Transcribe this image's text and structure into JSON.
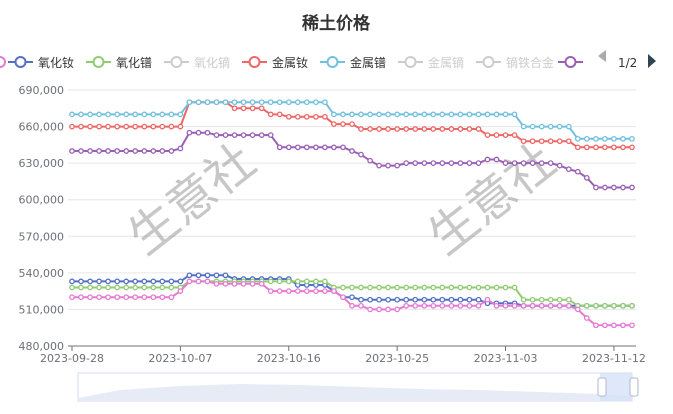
{
  "chart_data": {
    "type": "line",
    "title": "稀土价格",
    "xlabel": "",
    "ylabel": "",
    "ylim": [
      480000,
      690000
    ],
    "yticks": [
      "690,000",
      "660,000",
      "630,000",
      "600,000",
      "570,000",
      "540,000",
      "510,000",
      "480,000"
    ],
    "xticks": [
      "2023-09-28",
      "2023-10-07",
      "2023-10-16",
      "2023-10-25",
      "2023-11-03",
      "2023-11-12"
    ],
    "legend_position": "top",
    "grid": true,
    "legend_page": "1/2",
    "watermark": "生意社",
    "series": [
      {
        "name": "氧化钕",
        "color": "#5470c6",
        "visible": true,
        "values": [
          533000,
          533000,
          533000,
          533000,
          533000,
          533000,
          533000,
          533000,
          533000,
          533000,
          533000,
          533000,
          533000,
          538000,
          538000,
          538000,
          538000,
          538000,
          535000,
          535000,
          535000,
          535000,
          535000,
          535000,
          535000,
          530000,
          530000,
          530000,
          530000,
          525000,
          520000,
          520000,
          518000,
          518000,
          518000,
          518000,
          518000,
          518000,
          518000,
          518000,
          518000,
          518000,
          518000,
          518000,
          518000,
          518000,
          515000,
          515000,
          515000,
          515000,
          513000,
          513000,
          513000,
          513000,
          513000,
          513000,
          513000,
          513000,
          513000,
          513000,
          513000,
          513000,
          513000
        ]
      },
      {
        "name": "氧化镨",
        "color": "#91cc75",
        "visible": true,
        "values": [
          528000,
          528000,
          528000,
          528000,
          528000,
          528000,
          528000,
          528000,
          528000,
          528000,
          528000,
          528000,
          528000,
          533000,
          533000,
          533000,
          533000,
          533000,
          533000,
          533000,
          533000,
          533000,
          533000,
          533000,
          533000,
          533000,
          533000,
          533000,
          533000,
          528000,
          528000,
          528000,
          528000,
          528000,
          528000,
          528000,
          528000,
          528000,
          528000,
          528000,
          528000,
          528000,
          528000,
          528000,
          528000,
          528000,
          528000,
          528000,
          528000,
          528000,
          518000,
          518000,
          518000,
          518000,
          518000,
          518000,
          513000,
          513000,
          513000,
          513000,
          513000,
          513000,
          513000
        ]
      },
      {
        "name": "氧化镝",
        "color": "#cccccc",
        "visible": false,
        "values": []
      },
      {
        "name": "金属钕",
        "color": "#ee6666",
        "visible": true,
        "values": [
          660000,
          660000,
          660000,
          660000,
          660000,
          660000,
          660000,
          660000,
          660000,
          660000,
          660000,
          660000,
          660000,
          680000,
          680000,
          680000,
          680000,
          680000,
          675000,
          675000,
          675000,
          675000,
          670000,
          670000,
          668000,
          668000,
          668000,
          668000,
          668000,
          662000,
          662000,
          662000,
          658000,
          658000,
          658000,
          658000,
          658000,
          658000,
          658000,
          658000,
          658000,
          658000,
          658000,
          658000,
          658000,
          658000,
          653000,
          653000,
          653000,
          653000,
          648000,
          648000,
          648000,
          648000,
          648000,
          648000,
          643000,
          643000,
          643000,
          643000,
          643000,
          643000,
          643000
        ]
      },
      {
        "name": "金属镨",
        "color": "#73c0de",
        "visible": true,
        "values": [
          670000,
          670000,
          670000,
          670000,
          670000,
          670000,
          670000,
          670000,
          670000,
          670000,
          670000,
          670000,
          670000,
          680000,
          680000,
          680000,
          680000,
          680000,
          680000,
          680000,
          680000,
          680000,
          680000,
          680000,
          680000,
          680000,
          680000,
          680000,
          680000,
          670000,
          670000,
          670000,
          670000,
          670000,
          670000,
          670000,
          670000,
          670000,
          670000,
          670000,
          670000,
          670000,
          670000,
          670000,
          670000,
          670000,
          670000,
          670000,
          670000,
          670000,
          660000,
          660000,
          660000,
          660000,
          660000,
          660000,
          650000,
          650000,
          650000,
          650000,
          650000,
          650000,
          650000
        ]
      },
      {
        "name": "金属镝",
        "color": "#cccccc",
        "visible": false,
        "values": []
      },
      {
        "name": "镝铁合金",
        "color": "#cccccc",
        "visible": false,
        "values": []
      },
      {
        "name": "",
        "color": "#9a60b4",
        "visible": true,
        "values": [
          640000,
          640000,
          640000,
          640000,
          640000,
          640000,
          640000,
          640000,
          640000,
          640000,
          640000,
          640000,
          642000,
          655000,
          655000,
          655000,
          653000,
          653000,
          653000,
          653000,
          653000,
          653000,
          653000,
          643000,
          643000,
          643000,
          643000,
          643000,
          643000,
          643000,
          643000,
          640000,
          637000,
          632000,
          628000,
          628000,
          628000,
          630000,
          630000,
          630000,
          630000,
          630000,
          630000,
          630000,
          630000,
          630000,
          633000,
          633000,
          630000,
          630000,
          630000,
          630000,
          630000,
          630000,
          628000,
          625000,
          623000,
          618000,
          610000,
          610000,
          610000,
          610000,
          610000
        ]
      },
      {
        "name": "",
        "color": "#e67ad3",
        "visible": true,
        "values": [
          520000,
          520000,
          520000,
          520000,
          520000,
          520000,
          520000,
          520000,
          520000,
          520000,
          520000,
          520000,
          525000,
          533000,
          533000,
          533000,
          531000,
          531000,
          531000,
          531000,
          531000,
          531000,
          525000,
          525000,
          525000,
          525000,
          525000,
          525000,
          525000,
          525000,
          520000,
          513000,
          513000,
          510000,
          510000,
          510000,
          510000,
          513000,
          513000,
          513000,
          513000,
          513000,
          513000,
          513000,
          513000,
          513000,
          518000,
          513000,
          513000,
          513000,
          513000,
          513000,
          513000,
          513000,
          513000,
          513000,
          510000,
          503000,
          497000,
          497000,
          497000,
          497000,
          497000
        ]
      }
    ]
  }
}
